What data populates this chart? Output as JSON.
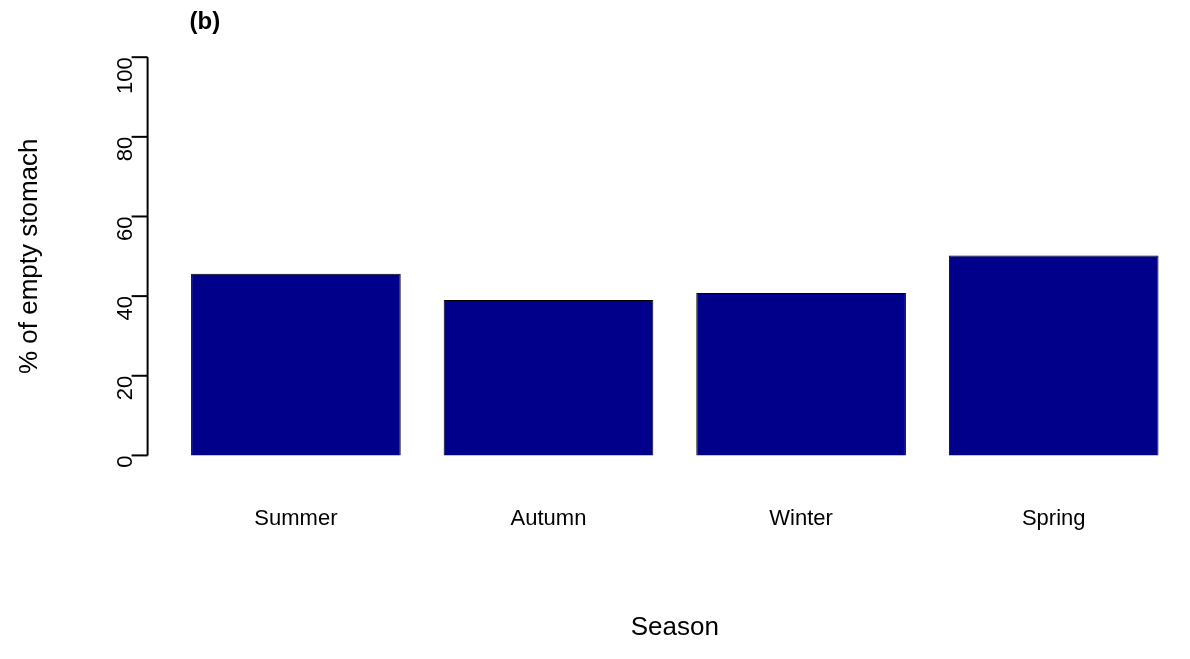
{
  "chart_data": {
    "type": "bar",
    "title": "(b)",
    "xlabel": "Season",
    "ylabel": "% of empty stomach",
    "categories": [
      "Summer",
      "Autumn",
      "Winter",
      "Spring"
    ],
    "values": [
      45.6,
      39,
      40.8,
      50.2
    ],
    "color": "#00008b",
    "ylim": [
      0,
      100
    ],
    "yticks": [
      0,
      20,
      40,
      60,
      80,
      100
    ],
    "grid": false,
    "legend": false
  }
}
